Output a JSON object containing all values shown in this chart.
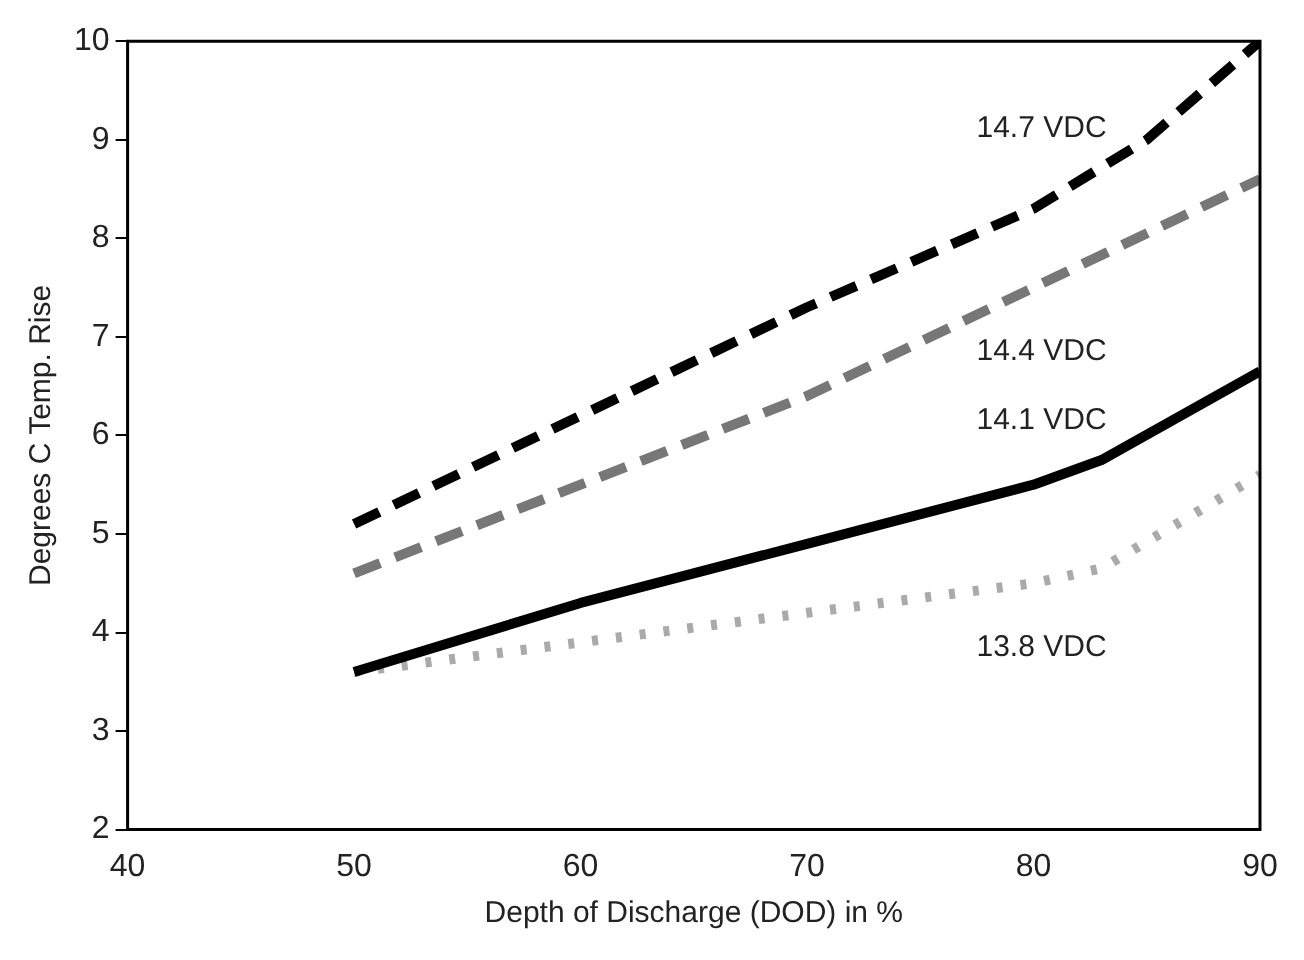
{
  "chart_data": {
    "type": "line",
    "xlabel": "Depth of Discharge (DOD) in %",
    "ylabel": "Degrees C Temp. Rise",
    "xlim": [
      40,
      90
    ],
    "xticks": [
      40,
      50,
      60,
      70,
      80,
      90
    ],
    "ylim": [
      2,
      10
    ],
    "yticks": [
      2,
      3,
      4,
      5,
      6,
      7,
      8,
      9,
      10
    ],
    "grid": false,
    "legend": false,
    "marker": "none",
    "series": [
      {
        "name": "14.7 VDC",
        "color": "#000000",
        "line_style": "dashed",
        "x": [
          50,
          60,
          70,
          80,
          85,
          90
        ],
        "values": [
          5.1,
          6.2,
          7.3,
          8.3,
          9.0,
          10.0
        ]
      },
      {
        "name": "14.4 VDC",
        "color": "#777777",
        "line_style": "dashed",
        "x": [
          50,
          60,
          70,
          80,
          90
        ],
        "values": [
          4.6,
          5.5,
          6.4,
          7.5,
          8.6
        ]
      },
      {
        "name": "14.1 VDC",
        "color": "#000000",
        "line_style": "solid",
        "x": [
          50,
          60,
          70,
          80,
          83,
          90
        ],
        "values": [
          3.6,
          4.3,
          4.9,
          5.5,
          5.75,
          6.65
        ]
      },
      {
        "name": "13.8 VDC",
        "color": "#aaaaaa",
        "line_style": "dotted",
        "x": [
          50,
          60,
          70,
          80,
          83,
          90
        ],
        "values": [
          3.6,
          3.9,
          4.2,
          4.5,
          4.65,
          5.6
        ]
      }
    ]
  }
}
